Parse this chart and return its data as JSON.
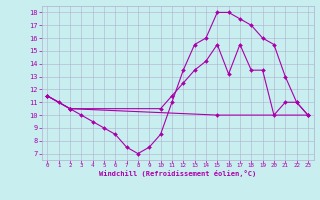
{
  "xlabel": "Windchill (Refroidissement éolien,°C)",
  "bg_color": "#c8eef0",
  "line_color": "#aa00aa",
  "grid_color": "#b0b0cc",
  "xlim": [
    -0.5,
    23.5
  ],
  "ylim": [
    6.5,
    18.5
  ],
  "xticks": [
    0,
    1,
    2,
    3,
    4,
    5,
    6,
    7,
    8,
    9,
    10,
    11,
    12,
    13,
    14,
    15,
    16,
    17,
    18,
    19,
    20,
    21,
    22,
    23
  ],
  "yticks": [
    7,
    8,
    9,
    10,
    11,
    12,
    13,
    14,
    15,
    16,
    17,
    18
  ],
  "line1_x": [
    0,
    1,
    2,
    3,
    4,
    5,
    6,
    7,
    8,
    9,
    10,
    11,
    12,
    13,
    14,
    15,
    16,
    17,
    18,
    19,
    20,
    21,
    22,
    23
  ],
  "line1_y": [
    11.5,
    11,
    10.5,
    10,
    9.5,
    9,
    8.5,
    7.5,
    7,
    7.5,
    8.5,
    11,
    13.5,
    15.5,
    16,
    18,
    18,
    17.5,
    17,
    16,
    15.5,
    13,
    11,
    10
  ],
  "line2_x": [
    0,
    2,
    15,
    23
  ],
  "line2_y": [
    11.5,
    10.5,
    10.0,
    10.0
  ],
  "line3_x": [
    0,
    2,
    10,
    11,
    12,
    13,
    14,
    15,
    16,
    17,
    18,
    19,
    20,
    21,
    22,
    23
  ],
  "line3_y": [
    11.5,
    10.5,
    10.5,
    11.5,
    12.5,
    13.5,
    14.2,
    15.5,
    13.2,
    15.5,
    13.5,
    13.5,
    10.0,
    11.0,
    11.0,
    10.0
  ]
}
